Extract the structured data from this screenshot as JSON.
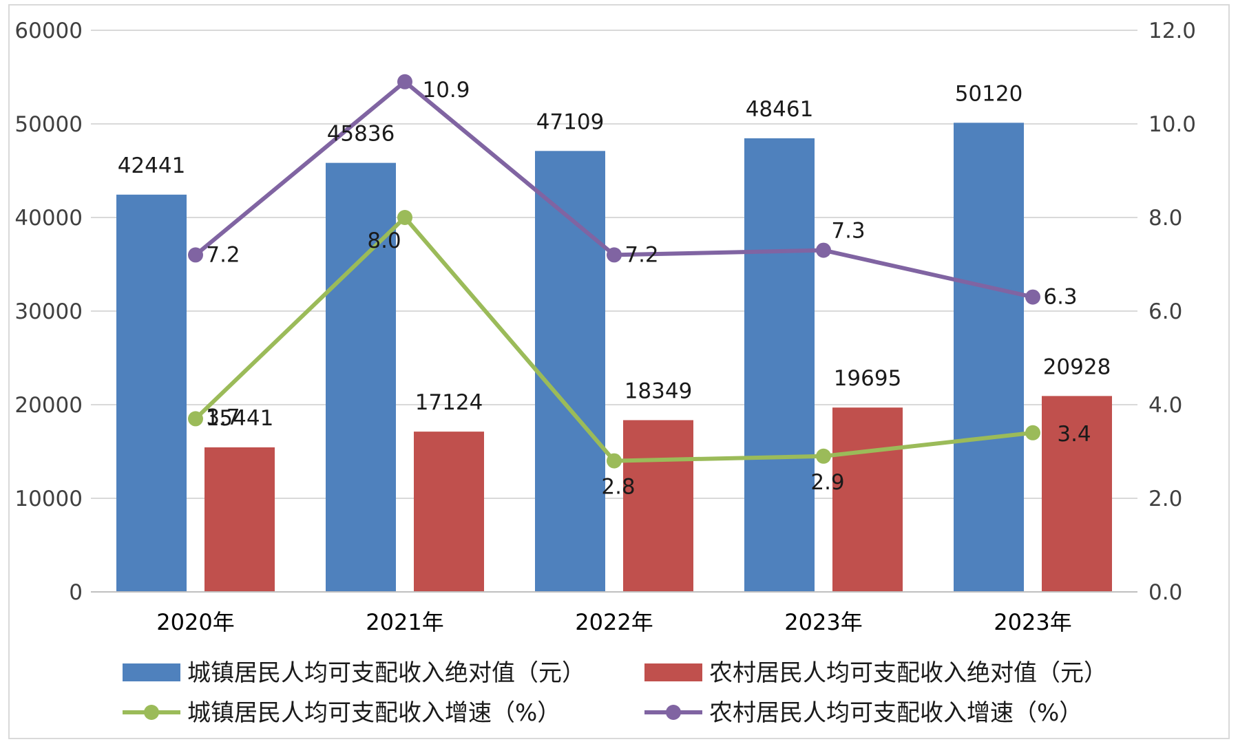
{
  "chart_data": {
    "type": "bar",
    "categories": [
      "2020年",
      "2021年",
      "2022年",
      "2023年",
      "2023年"
    ],
    "y_left": {
      "range": [
        0,
        60000
      ],
      "ticks": [
        "0",
        "10000",
        "20000",
        "30000",
        "40000",
        "50000",
        "60000"
      ]
    },
    "y_right": {
      "range": [
        0,
        12
      ],
      "ticks": [
        "0.0",
        "2.0",
        "4.0",
        "6.0",
        "8.0",
        "10.0",
        "12.0"
      ]
    },
    "grid": true,
    "legend_position": "bottom",
    "series": [
      {
        "name": "城镇居民人均可支配收入绝对值（元）",
        "kind": "bar",
        "axis": "left",
        "color": "#4f81bd",
        "values": [
          42441,
          45836,
          47109,
          48461,
          50120
        ],
        "labels": [
          "42441",
          "45836",
          "47109",
          "48461",
          "50120"
        ]
      },
      {
        "name": "农村居民人均可支配收入绝对值（元）",
        "kind": "bar",
        "axis": "left",
        "color": "#c0504d",
        "values": [
          15441,
          17124,
          18349,
          19695,
          20928
        ],
        "labels": [
          "15441",
          "17124",
          "18349",
          "19695",
          "20928"
        ]
      },
      {
        "name": "城镇居民人均可支配收入增速（%）",
        "kind": "line",
        "axis": "right",
        "color": "#9bbb59",
        "values": [
          3.7,
          8.0,
          2.8,
          2.9,
          3.4
        ],
        "labels": [
          "3.7",
          "8.0",
          "2.8",
          "2.9",
          "3.4"
        ]
      },
      {
        "name": "农村居民人均可支配收入增速（%）",
        "kind": "line",
        "axis": "right",
        "color": "#8064a2",
        "values": [
          7.2,
          10.9,
          7.2,
          7.3,
          6.3
        ],
        "labels": [
          "7.2",
          "10.9",
          "7.2",
          "7.3",
          "6.3"
        ]
      }
    ]
  }
}
